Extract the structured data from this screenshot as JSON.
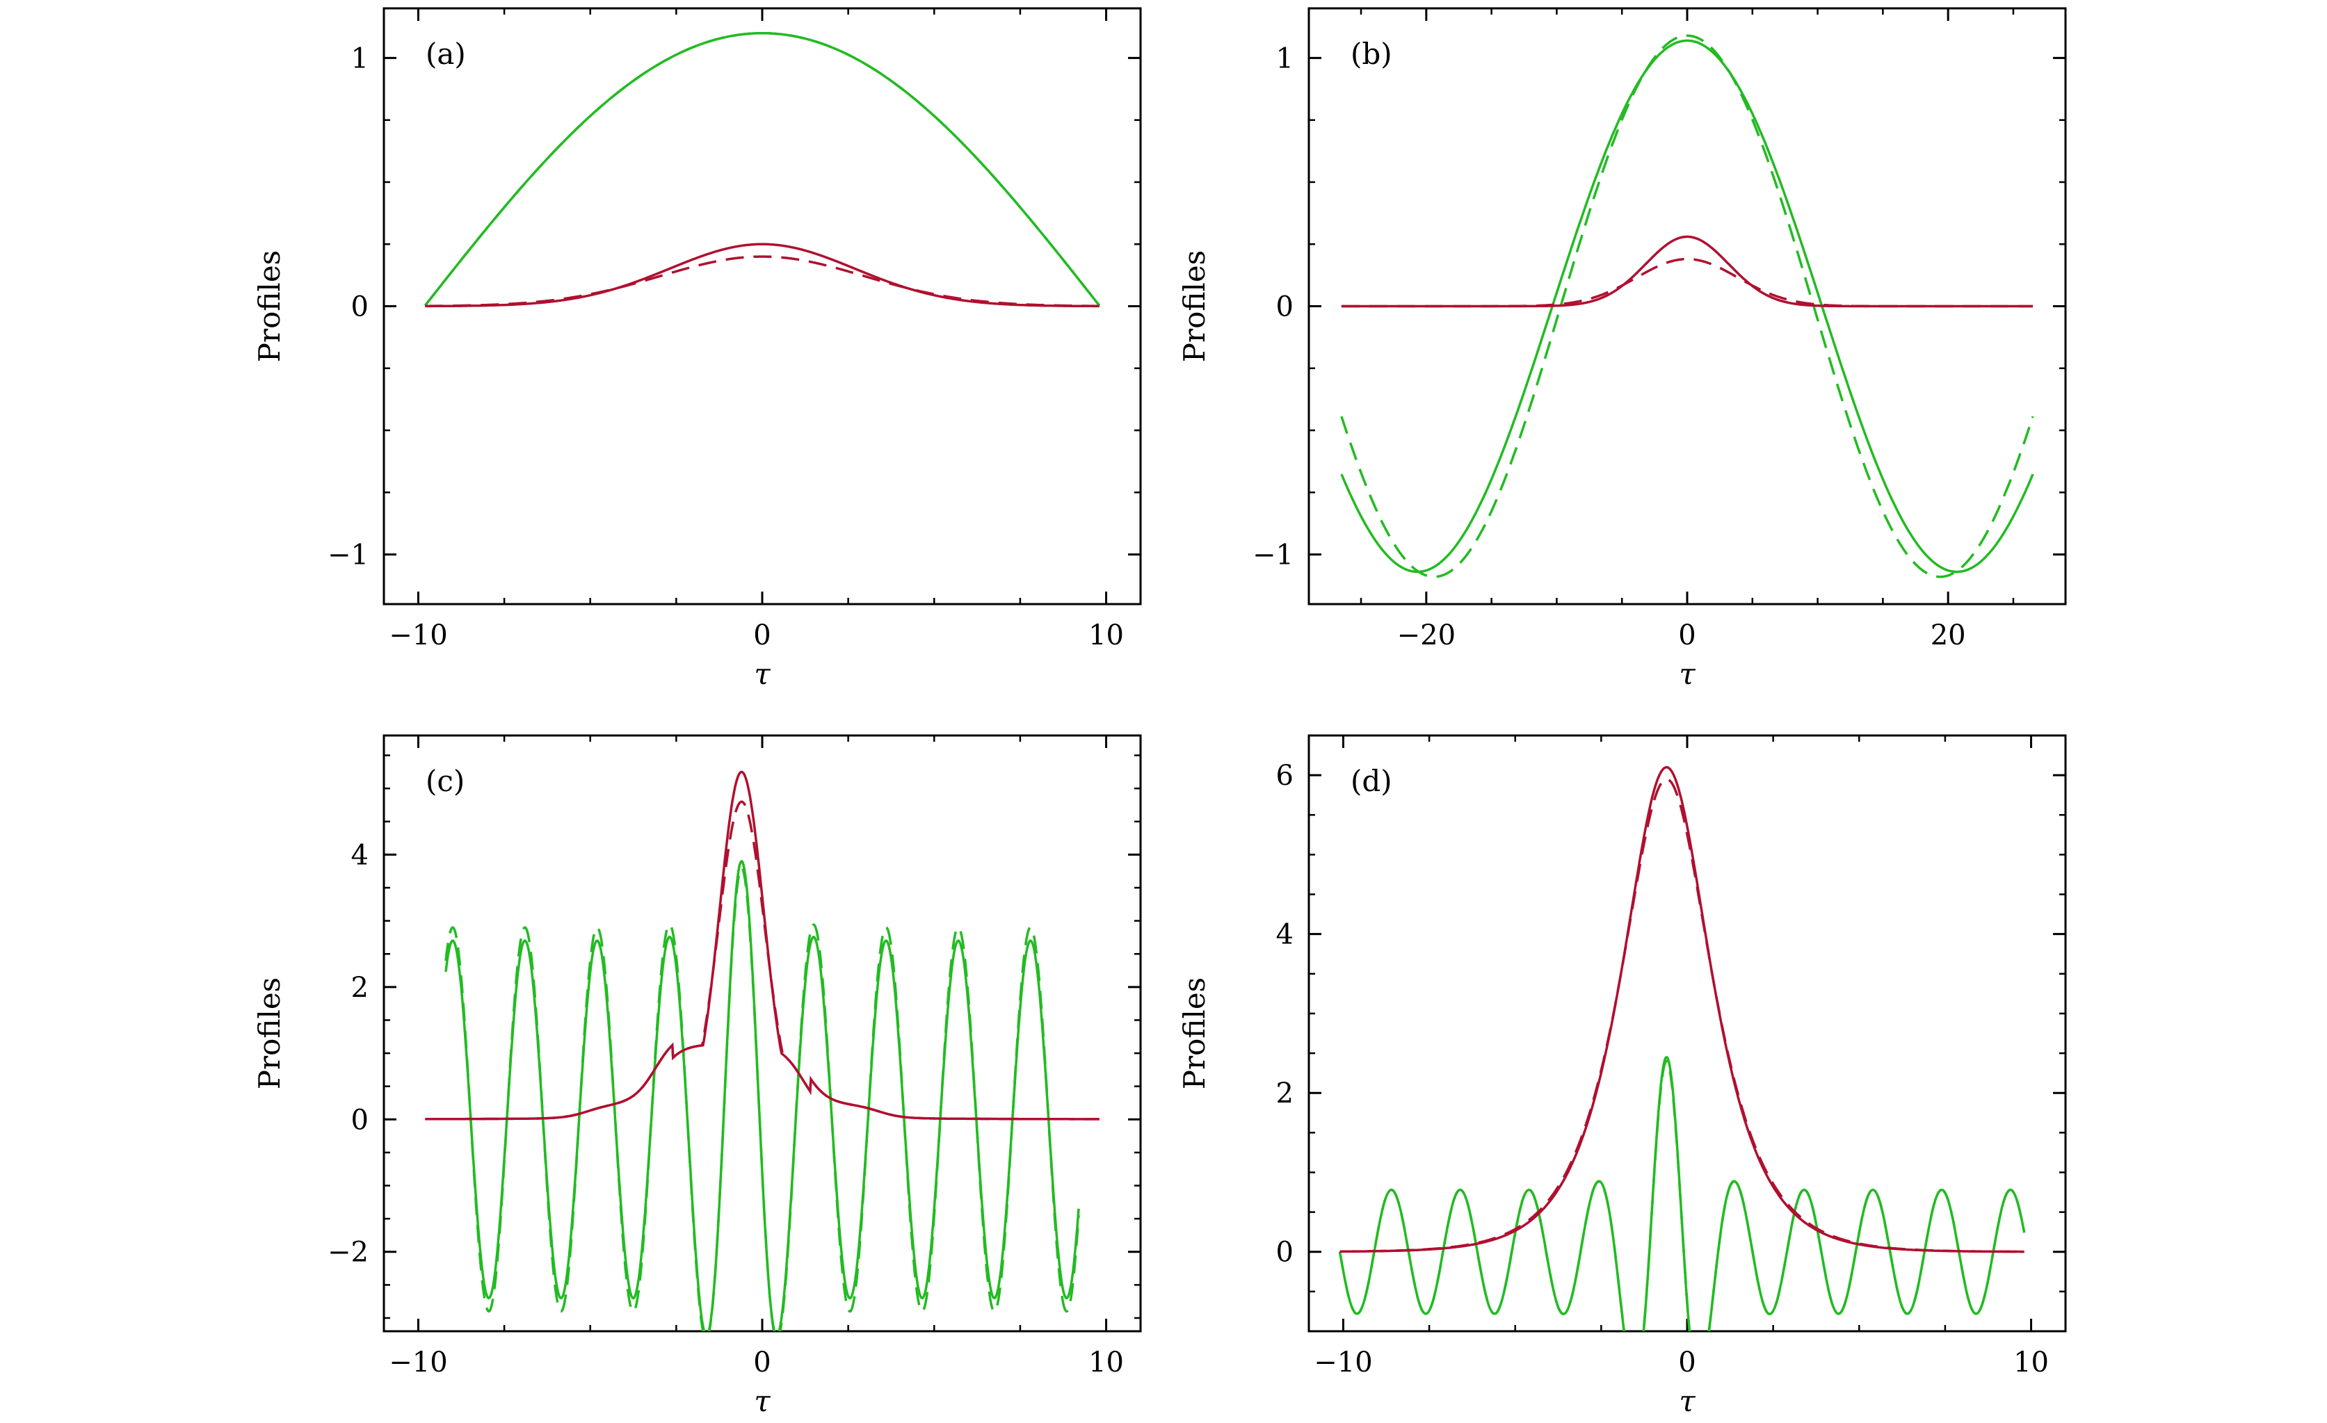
{
  "figure": {
    "colors": {
      "green": "#22bb22",
      "red": "#b01030",
      "axis": "#000000"
    },
    "line_styles": {
      "solid": "solid",
      "dashed": "dashed"
    }
  },
  "chart_data": [
    {
      "type": "line",
      "panel_label": "(a)",
      "xlabel": "τ",
      "ylabel": "Profiles",
      "xlim": [
        -11,
        11
      ],
      "ylim": [
        -1.2,
        1.2
      ],
      "xticks": [
        -10,
        0,
        10
      ],
      "xtick_labels": [
        "−10",
        "0",
        "10"
      ],
      "yticks": [
        -1,
        0,
        1
      ],
      "ytick_labels": [
        "−1",
        "0",
        "1"
      ],
      "grid": false,
      "series": [
        {
          "color": "green",
          "style": "solid",
          "kind": "cos",
          "amp": 1.1,
          "k": 0.16,
          "x0": 0,
          "range": [
            -9.8,
            9.8
          ]
        },
        {
          "color": "green",
          "style": "dashed",
          "kind": "cos",
          "amp": 1.1,
          "k": 0.16,
          "x0": 0,
          "range": [
            -9.8,
            9.8
          ]
        },
        {
          "color": "red",
          "style": "solid",
          "kind": "gauss",
          "amp": 0.25,
          "w": 3.8,
          "x0": 0,
          "range": [
            -9.8,
            9.8
          ]
        },
        {
          "color": "red",
          "style": "dashed",
          "kind": "gauss",
          "amp": 0.2,
          "w": 4.2,
          "x0": 0,
          "range": [
            -9.8,
            9.8
          ]
        }
      ]
    },
    {
      "type": "line",
      "panel_label": "(b)",
      "xlabel": "τ",
      "ylabel": "Profiles",
      "xlim": [
        -29,
        29
      ],
      "ylim": [
        -1.2,
        1.2
      ],
      "xticks": [
        -20,
        0,
        20
      ],
      "xtick_labels": [
        "−20",
        "0",
        "20"
      ],
      "yticks": [
        -1,
        0,
        1
      ],
      "ytick_labels": [
        "−1",
        "0",
        "1"
      ],
      "grid": false,
      "series": [
        {
          "color": "green",
          "style": "solid",
          "kind": "cos",
          "amp": 1.07,
          "k": 0.152,
          "x0": 0,
          "range": [
            -26.5,
            26.5
          ]
        },
        {
          "color": "green",
          "style": "dashed",
          "kind": "cos",
          "amp": 1.09,
          "k": 0.162,
          "x0": 0,
          "range": [
            -26.5,
            26.5
          ]
        },
        {
          "color": "red",
          "style": "solid",
          "kind": "gauss",
          "amp": 0.28,
          "w": 4.5,
          "x0": 0,
          "range": [
            -26.5,
            26.5
          ]
        },
        {
          "color": "red",
          "style": "dashed",
          "kind": "gauss",
          "amp": 0.19,
          "w": 5.5,
          "x0": 0,
          "range": [
            -26.5,
            26.5
          ]
        }
      ]
    },
    {
      "type": "line",
      "panel_label": "(c)",
      "xlabel": "τ",
      "ylabel": "Profiles",
      "xlim": [
        -11,
        11
      ],
      "ylim": [
        -3.2,
        5.8
      ],
      "xticks": [
        -10,
        0,
        10
      ],
      "xtick_labels": [
        "−10",
        "0",
        "10"
      ],
      "yticks": [
        -2,
        0,
        2,
        4
      ],
      "ytick_labels": [
        "−2",
        "0",
        "2",
        "4"
      ],
      "grid": false,
      "series": [
        {
          "color": "green",
          "style": "solid",
          "kind": "osc",
          "base_amp": 2.7,
          "peak_amp": 3.9,
          "period": 2.1,
          "x0": -0.6,
          "w": 1.2,
          "range": [
            -9.2,
            9.2
          ]
        },
        {
          "color": "green",
          "style": "dashed",
          "kind": "osc",
          "base_amp": 2.9,
          "peak_amp": 3.8,
          "period": 2.1,
          "x0": -0.6,
          "w": 1.2,
          "range": [
            -9.2,
            9.2
          ]
        },
        {
          "color": "red",
          "style": "solid",
          "kind": "staircase",
          "amp": 5.25,
          "x0": -0.6,
          "w": 0.9,
          "range": [
            -9.8,
            9.8
          ]
        },
        {
          "color": "red",
          "style": "dashed",
          "kind": "staircase",
          "amp": 4.8,
          "x0": -0.6,
          "w": 0.95,
          "range": [
            -9.8,
            9.8
          ]
        }
      ]
    },
    {
      "type": "line",
      "panel_label": "(d)",
      "xlabel": "τ",
      "ylabel": "Profiles",
      "xlim": [
        -11,
        11
      ],
      "ylim": [
        -1.0,
        6.5
      ],
      "xticks": [
        -10,
        0,
        10
      ],
      "xtick_labels": [
        "−10",
        "0",
        "10"
      ],
      "yticks": [
        0,
        2,
        4,
        6
      ],
      "ytick_labels": [
        "0",
        "2",
        "4",
        "6"
      ],
      "grid": false,
      "series": [
        {
          "color": "green",
          "style": "solid",
          "kind": "osc",
          "base_amp": 0.78,
          "peak_amp": 2.45,
          "period": 2.0,
          "x0": -0.6,
          "w": 1.2,
          "range": [
            -10.1,
            9.8
          ]
        },
        {
          "color": "green",
          "style": "dashed",
          "kind": "osc",
          "base_amp": 0.78,
          "peak_amp": 2.4,
          "period": 2.0,
          "x0": -0.6,
          "w": 1.2,
          "range": [
            -10.1,
            9.8
          ]
        },
        {
          "color": "red",
          "style": "solid",
          "kind": "sech",
          "amp": 6.1,
          "x0": -0.6,
          "w": 1.15,
          "range": [
            -10.1,
            9.8
          ]
        },
        {
          "color": "red",
          "style": "dashed",
          "kind": "sech",
          "amp": 5.95,
          "x0": -0.6,
          "w": 1.18,
          "range": [
            -10.1,
            9.8
          ]
        }
      ]
    }
  ]
}
